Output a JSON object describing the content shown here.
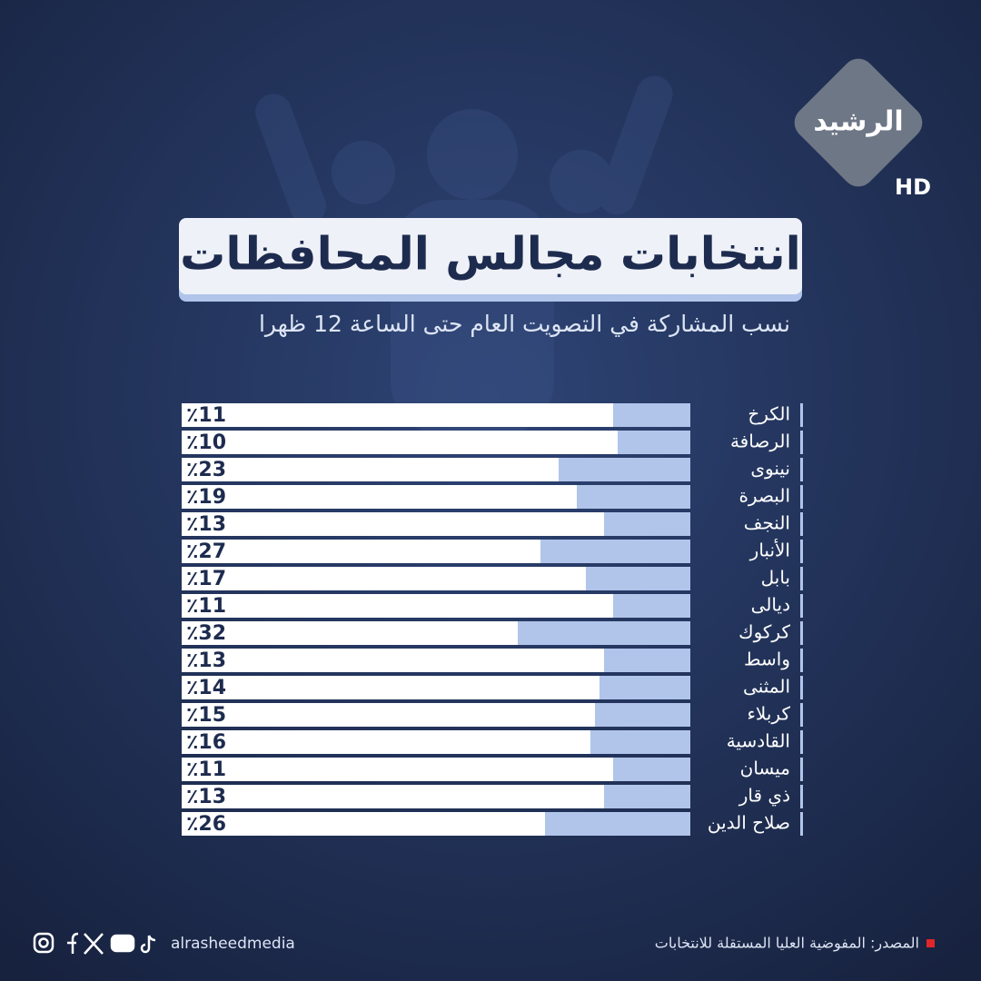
{
  "chart_data": {
    "type": "bar",
    "orientation": "horizontal",
    "title": "انتخابات مجالس المحافظات",
    "subtitle": "نسب المشاركة في التصويت العام حتى الساعة 12 ظهرا",
    "categories": [
      "الكرخ",
      "الرصافة",
      "نينوى",
      "البصرة",
      "النجف",
      "الأنبار",
      "بابل",
      "ديالى",
      "كركوك",
      "واسط",
      "المثنى",
      "كربلاء",
      "القادسية",
      "ميسان",
      "ذي قار",
      "صلاح الدين"
    ],
    "values": [
      11,
      10,
      23,
      19,
      13,
      27,
      17,
      11,
      32,
      13,
      14,
      15,
      16,
      11,
      13,
      26
    ],
    "value_labels": [
      "٪11",
      "٪10",
      "٪23",
      "٪19",
      "٪13",
      "٪27",
      "٪17",
      "٪11",
      "٪32",
      "٪13",
      "٪14",
      "٪15",
      "٪16",
      "٪11",
      "٪13",
      "٪26"
    ],
    "color": "#b1c5ea"
  },
  "logo": {
    "name": "الرشيد",
    "badge": "HD"
  },
  "footer": {
    "source": "المصدر: المفوضية العليا المستقلة للانتخابات",
    "handle": "alrasheedmedia"
  }
}
